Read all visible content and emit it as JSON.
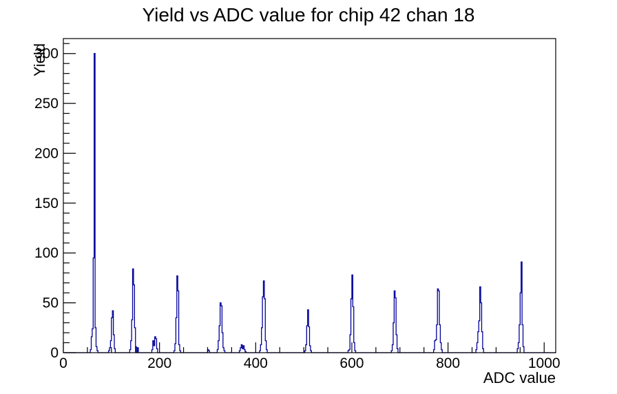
{
  "chart_data": {
    "type": "histogram",
    "title": "Yield vs ADC value for chip 42 chan 18",
    "xlabel": "ADC value",
    "ylabel": "Yield",
    "xlim": [
      0,
      1024
    ],
    "ylim": [
      0,
      315
    ],
    "grid": false,
    "legend": false,
    "line_color": "#000099",
    "axis_color": "#000000",
    "background_color": "#ffffff",
    "x_major_ticks": [
      0,
      200,
      400,
      600,
      800,
      1000
    ],
    "x_tick_labels": [
      "0",
      "200",
      "400",
      "600",
      "800",
      "1000"
    ],
    "x_minor_tick_step": 50,
    "y_major_ticks": [
      0,
      50,
      100,
      150,
      200,
      250,
      300
    ],
    "y_tick_labels": [
      "0",
      "50",
      "100",
      "150",
      "200",
      "250",
      "300"
    ],
    "y_minor_tick_step": 10,
    "bin_width": 2,
    "bins": [
      [
        56,
        3
      ],
      [
        58,
        16
      ],
      [
        60,
        24
      ],
      [
        62,
        95
      ],
      [
        64,
        300
      ],
      [
        66,
        25
      ],
      [
        68,
        6
      ],
      [
        70,
        2
      ],
      [
        94,
        2
      ],
      [
        96,
        5
      ],
      [
        98,
        12
      ],
      [
        100,
        35
      ],
      [
        102,
        42
      ],
      [
        104,
        18
      ],
      [
        106,
        4
      ],
      [
        138,
        3
      ],
      [
        140,
        12
      ],
      [
        142,
        33
      ],
      [
        144,
        84
      ],
      [
        146,
        68
      ],
      [
        148,
        25
      ],
      [
        150,
        6
      ],
      [
        154,
        5
      ],
      [
        184,
        3
      ],
      [
        186,
        12
      ],
      [
        188,
        7
      ],
      [
        190,
        16
      ],
      [
        192,
        14
      ],
      [
        194,
        4
      ],
      [
        230,
        2
      ],
      [
        232,
        9
      ],
      [
        234,
        35
      ],
      [
        236,
        77
      ],
      [
        238,
        62
      ],
      [
        240,
        8
      ],
      [
        242,
        2
      ],
      [
        300,
        3
      ],
      [
        302,
        2
      ],
      [
        320,
        3
      ],
      [
        322,
        12
      ],
      [
        324,
        27
      ],
      [
        326,
        50
      ],
      [
        328,
        47
      ],
      [
        330,
        20
      ],
      [
        332,
        5
      ],
      [
        334,
        2
      ],
      [
        366,
        2
      ],
      [
        368,
        5
      ],
      [
        370,
        8
      ],
      [
        372,
        4
      ],
      [
        374,
        7
      ],
      [
        376,
        3
      ],
      [
        378,
        1
      ],
      [
        408,
        2
      ],
      [
        410,
        8
      ],
      [
        412,
        25
      ],
      [
        414,
        56
      ],
      [
        416,
        72
      ],
      [
        418,
        54
      ],
      [
        420,
        12
      ],
      [
        422,
        3
      ],
      [
        502,
        2
      ],
      [
        504,
        8
      ],
      [
        506,
        27
      ],
      [
        508,
        43
      ],
      [
        510,
        26
      ],
      [
        512,
        7
      ],
      [
        514,
        2
      ],
      [
        592,
        2
      ],
      [
        594,
        3
      ],
      [
        596,
        18
      ],
      [
        598,
        54
      ],
      [
        600,
        78
      ],
      [
        602,
        46
      ],
      [
        604,
        10
      ],
      [
        606,
        2
      ],
      [
        682,
        2
      ],
      [
        684,
        8
      ],
      [
        686,
        30
      ],
      [
        688,
        62
      ],
      [
        690,
        55
      ],
      [
        692,
        18
      ],
      [
        694,
        4
      ],
      [
        770,
        3
      ],
      [
        772,
        12
      ],
      [
        774,
        13
      ],
      [
        776,
        28
      ],
      [
        778,
        64
      ],
      [
        780,
        62
      ],
      [
        782,
        28
      ],
      [
        784,
        10
      ],
      [
        786,
        3
      ],
      [
        858,
        3
      ],
      [
        860,
        10
      ],
      [
        862,
        21
      ],
      [
        864,
        32
      ],
      [
        866,
        66
      ],
      [
        868,
        50
      ],
      [
        870,
        21
      ],
      [
        872,
        4
      ],
      [
        944,
        4
      ],
      [
        946,
        10
      ],
      [
        948,
        28
      ],
      [
        950,
        60
      ],
      [
        952,
        91
      ],
      [
        954,
        28
      ],
      [
        956,
        6
      ]
    ]
  }
}
